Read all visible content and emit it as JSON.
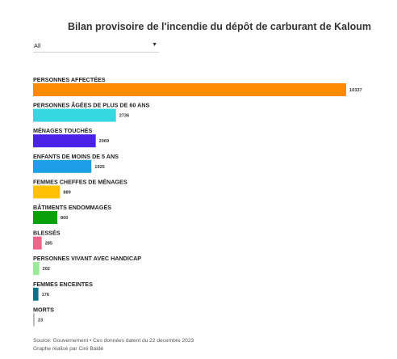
{
  "title": "Bilan provisoire de l'incendie du dépôt de carburant de Kaloum",
  "filter": {
    "selected": "All",
    "caret_icon": "▼"
  },
  "chart_data": {
    "type": "bar",
    "orientation": "horizontal",
    "categories": [
      "PERSONNES AFFECTÉES",
      "PERSONNES ÂGÉES DE PLUS DE 60 ANS",
      "MÉNAGES TOUCHÉS",
      "ENFANTS DE MOINS DE 5 ANS",
      "FEMMES CHEFFES DE MÉNAGES",
      "BÂTIMENTS ENDOMMAGÉS",
      "BLESSÉS",
      "PERSONNES VIVANT AVEC HANDICAP",
      "FEMMES ENCEINTES",
      "MORTS"
    ],
    "values": [
      10337,
      2736,
      2069,
      1925,
      889,
      800,
      285,
      202,
      176,
      23
    ],
    "colors": [
      "#ff8c00",
      "#35d8e0",
      "#4a22e8",
      "#1d9fe8",
      "#ffc200",
      "#0aa00a",
      "#f2648a",
      "#9be89b",
      "#0d7186",
      "#bbbbbb"
    ],
    "xlim": [
      0,
      10337
    ],
    "grid": false,
    "legend": "none"
  },
  "source": {
    "line1": "Source: Gouvernement • Ces données datent du 22 decembre 2023",
    "line2": "Graphe réalisé par Ciré Baldé"
  }
}
